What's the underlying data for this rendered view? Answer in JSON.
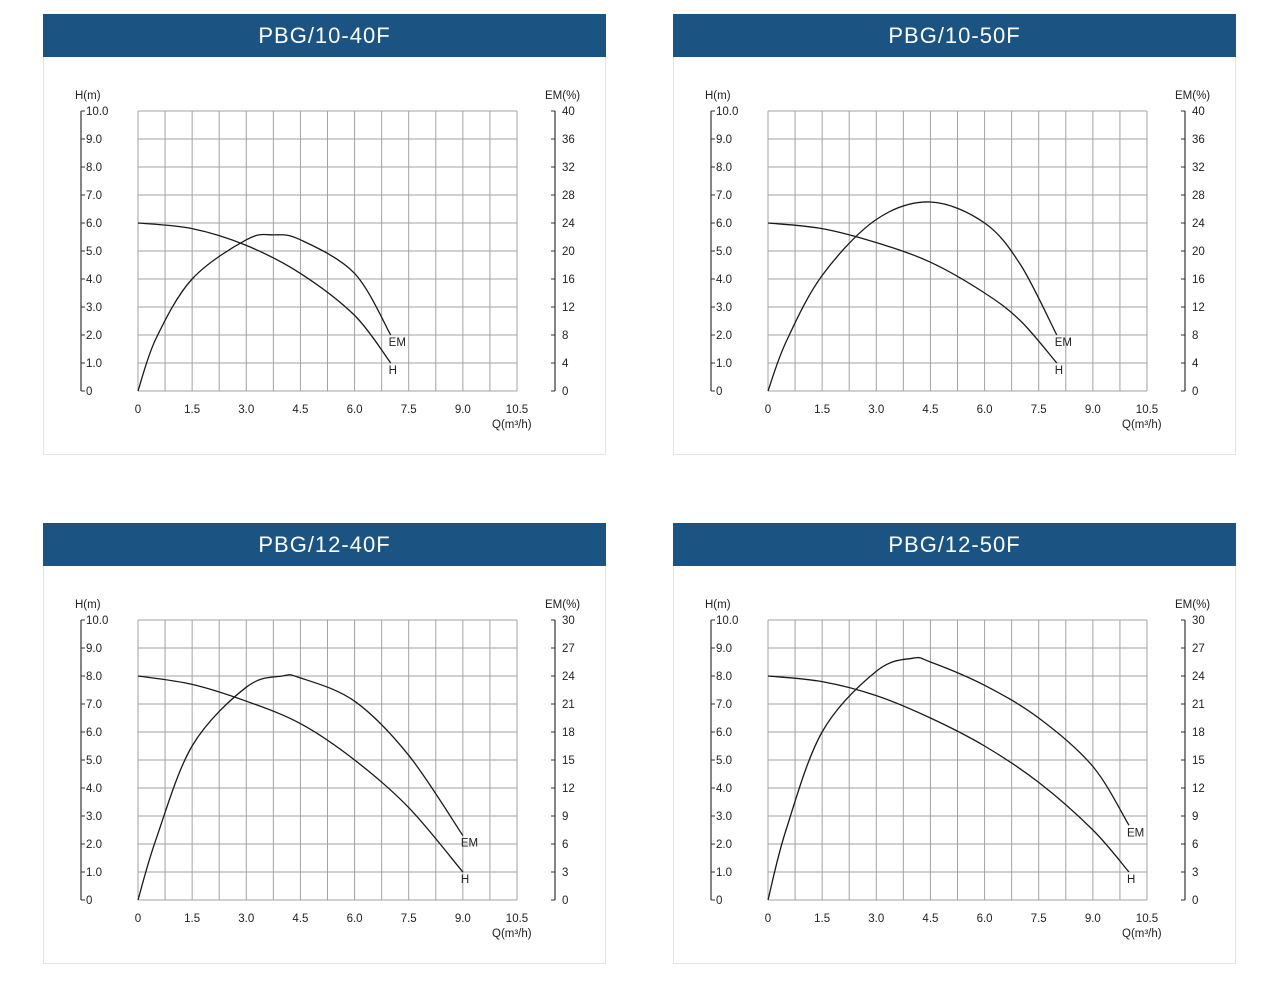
{
  "chart_data": [
    {
      "type": "line",
      "title": "PBG/10-40F",
      "ylabel_left": "H(m)",
      "ylabel_right": "EM(%)",
      "xlabel": "Q(m³/h)",
      "x_ticks": [
        "0",
        "1.5",
        "3.0",
        "4.5",
        "6.0",
        "7.5",
        "9.0",
        "10.5"
      ],
      "y_left_ticks": [
        "0",
        "1.0",
        "2.0",
        "3.0",
        "4.0",
        "5.0",
        "6.0",
        "7.0",
        "8.0",
        "9.0",
        "10.0"
      ],
      "y_right_ticks": [
        "0",
        "4",
        "8",
        "12",
        "16",
        "20",
        "24",
        "28",
        "32",
        "36",
        "40"
      ],
      "xlim": [
        0,
        10.5
      ],
      "ylim_left": [
        0,
        10
      ],
      "ylim_right": [
        0,
        40
      ],
      "grid": true,
      "series": [
        {
          "name": "H",
          "axis": "left",
          "x": [
            0,
            1.5,
            3.0,
            4.5,
            6.0,
            7.0
          ],
          "y": [
            6.0,
            5.8,
            5.2,
            4.2,
            2.7,
            1.0
          ]
        },
        {
          "name": "EM",
          "axis": "right",
          "x": [
            0,
            0.5,
            1.5,
            3.0,
            3.75,
            4.5,
            6.0,
            7.0
          ],
          "y": [
            0,
            7.5,
            16,
            21.6,
            22.3,
            21.6,
            16.8,
            8
          ]
        }
      ]
    },
    {
      "type": "line",
      "title": "PBG/10-50F",
      "ylabel_left": "H(m)",
      "ylabel_right": "EM(%)",
      "xlabel": "Q(m³/h)",
      "x_ticks": [
        "0",
        "1.5",
        "3.0",
        "4.5",
        "6.0",
        "7.5",
        "9.0",
        "10.5"
      ],
      "y_left_ticks": [
        "0",
        "1.0",
        "2.0",
        "3.0",
        "4.0",
        "5.0",
        "6.0",
        "7.0",
        "8.0",
        "9.0",
        "10.0"
      ],
      "y_right_ticks": [
        "0",
        "4",
        "8",
        "12",
        "16",
        "20",
        "24",
        "28",
        "32",
        "36",
        "40"
      ],
      "xlim": [
        0,
        10.5
      ],
      "ylim_left": [
        0,
        10
      ],
      "ylim_right": [
        0,
        40
      ],
      "grid": true,
      "series": [
        {
          "name": "H",
          "axis": "left",
          "x": [
            0,
            1.5,
            3.0,
            4.5,
            6.0,
            7.0,
            8.0
          ],
          "y": [
            6.0,
            5.8,
            5.3,
            4.6,
            3.5,
            2.5,
            1.0
          ]
        },
        {
          "name": "EM",
          "axis": "right",
          "x": [
            0,
            0.5,
            1.5,
            3.0,
            4.5,
            6.0,
            7.0,
            8.0
          ],
          "y": [
            0,
            7,
            16.5,
            24.5,
            27,
            24,
            18,
            8
          ]
        }
      ]
    },
    {
      "type": "line",
      "title": "PBG/12-40F",
      "ylabel_left": "H(m)",
      "ylabel_right": "EM(%)",
      "xlabel": "Q(m³/h)",
      "x_ticks": [
        "0",
        "1.5",
        "3.0",
        "4.5",
        "6.0",
        "7.5",
        "9.0",
        "10.5"
      ],
      "y_left_ticks": [
        "0",
        "1.0",
        "2.0",
        "3.0",
        "4.0",
        "5.0",
        "6.0",
        "7.0",
        "8.0",
        "9.0",
        "10.0"
      ],
      "y_right_ticks": [
        "0",
        "3",
        "6",
        "9",
        "12",
        "15",
        "18",
        "21",
        "24",
        "27",
        "30"
      ],
      "xlim": [
        0,
        10.5
      ],
      "ylim_left": [
        0,
        10
      ],
      "ylim_right": [
        0,
        30
      ],
      "grid": true,
      "series": [
        {
          "name": "H",
          "axis": "left",
          "x": [
            0,
            1.5,
            3.0,
            4.5,
            6.0,
            7.5,
            9.0
          ],
          "y": [
            8.0,
            7.7,
            7.1,
            6.3,
            5.0,
            3.3,
            1.0
          ]
        },
        {
          "name": "EM",
          "axis": "right",
          "x": [
            0,
            0.5,
            1.5,
            3.0,
            4.0,
            4.5,
            6.0,
            7.5,
            9.0
          ],
          "y": [
            0,
            6.5,
            16.5,
            22.8,
            24,
            23.8,
            21.3,
            15.5,
            6.9
          ]
        }
      ]
    },
    {
      "type": "line",
      "title": "PBG/12-50F",
      "ylabel_left": "H(m)",
      "ylabel_right": "EM(%)",
      "xlabel": "Q(m³/h)",
      "x_ticks": [
        "0",
        "1.5",
        "3.0",
        "4.5",
        "6.0",
        "7.5",
        "9.0",
        "10.5"
      ],
      "y_left_ticks": [
        "0",
        "1.0",
        "2.0",
        "3.0",
        "4.0",
        "5.0",
        "6.0",
        "7.0",
        "8.0",
        "9.0",
        "10.0"
      ],
      "y_right_ticks": [
        "0",
        "3",
        "6",
        "9",
        "12",
        "15",
        "18",
        "21",
        "24",
        "27",
        "30"
      ],
      "xlim": [
        0,
        10.5
      ],
      "ylim_left": [
        0,
        10
      ],
      "ylim_right": [
        0,
        30
      ],
      "grid": true,
      "series": [
        {
          "name": "H",
          "axis": "left",
          "x": [
            0,
            1.5,
            3.0,
            4.5,
            6.0,
            7.5,
            9.0,
            10.0
          ],
          "y": [
            8.0,
            7.8,
            7.3,
            6.5,
            5.5,
            4.2,
            2.5,
            1.0
          ]
        },
        {
          "name": "EM",
          "axis": "right",
          "x": [
            0,
            0.5,
            1.5,
            3.0,
            4.0,
            4.5,
            6.0,
            7.5,
            9.0,
            10.0
          ],
          "y": [
            0,
            7.5,
            18,
            24.5,
            25.9,
            25.5,
            23,
            19.5,
            14.3,
            8
          ]
        }
      ]
    }
  ]
}
